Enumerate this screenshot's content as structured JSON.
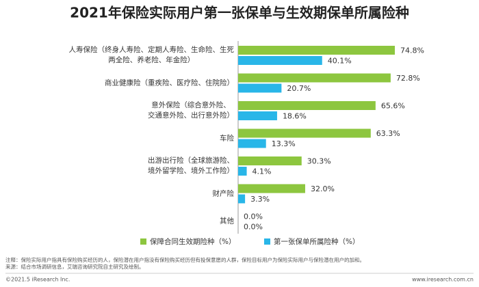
{
  "chart_data": {
    "type": "bar",
    "orientation": "horizontal",
    "title": "2021年保险实际用户第一张保单与生效期保单所属险种",
    "categories": [
      "人寿保险（终身人寿险、定期人寿险、生命险、生死\n两全险、养老险、年金险）",
      "商业健康险（重疾险、医疗险、住院险）",
      "意外保险（综合意外险、\n交通意外险、出行意外险）",
      "车险",
      "出游出行险（全球旅游险、\n境外留学险、境外工作险）",
      "财产险",
      "其他"
    ],
    "series": [
      {
        "name": "保障合同生效期险种（%）",
        "color": "#8dc63f",
        "values": [
          74.8,
          72.8,
          65.6,
          63.3,
          30.3,
          32.0,
          0.0
        ],
        "value_labels": [
          "74.8%",
          "72.8%",
          "65.6%",
          "63.3%",
          "30.3%",
          "32.0%",
          "0.0%"
        ]
      },
      {
        "name": "第一张保单所属险种（%）",
        "color": "#29b6e8",
        "values": [
          40.1,
          20.7,
          18.6,
          13.3,
          4.1,
          3.3,
          0.0
        ],
        "value_labels": [
          "40.1%",
          "20.7%",
          "18.6%",
          "13.3%",
          "4.1%",
          "3.3%",
          "0.0%"
        ]
      }
    ],
    "notes": [
      "注释：保险实际用户指具有保险购买经历的人，保险潜在用户指没有保险购买经历但有投保意愿的人群，保险目标用户为保险实际用户与保险潜在用户的加和。",
      "来源：结合市场调研信息，艾瑞咨询研究院自主研究及绘制。"
    ],
    "copyright": "©2021.5 iResearch Inc.",
    "website": "www.iresearch.com.cn"
  }
}
